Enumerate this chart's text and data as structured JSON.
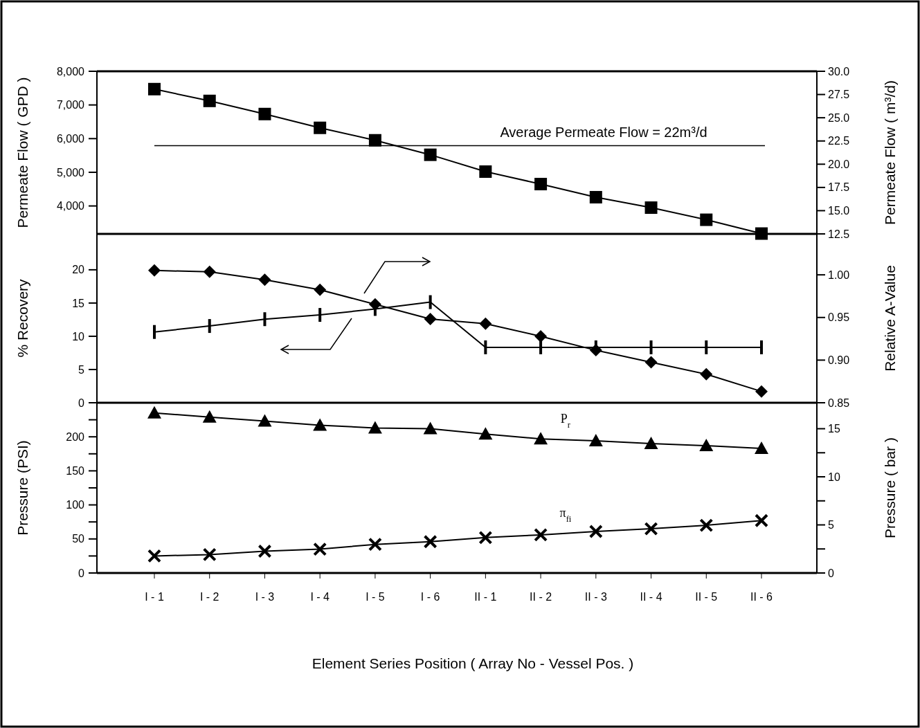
{
  "chart_data": [
    {
      "type": "line",
      "categories": [
        null,
        null,
        null,
        null,
        null,
        null,
        null,
        null,
        null,
        null,
        null,
        null
      ],
      "tick_labels": "y",
      "ylabel": "Permeate Flow ( GPD )",
      "y2label": "Permeate Flow ( m³/d)",
      "ylim": [
        3170,
        8000
      ],
      "yticks": [
        {
          "value": 4000,
          "label": "4,000"
        },
        {
          "value": 5000,
          "label": "5,000"
        },
        {
          "value": 6000,
          "label": "6,000"
        },
        {
          "value": 7000,
          "label": "7,000"
        },
        {
          "value": 8000,
          "label": "8,000"
        }
      ],
      "y2lim": [
        12.5,
        30
      ],
      "y2ticks": [
        {
          "value": 12.5,
          "label": "12.5"
        },
        {
          "value": 15,
          "label": "15.0"
        },
        {
          "value": 17.5,
          "label": "17.5"
        },
        {
          "value": 20,
          "label": "20.0"
        },
        {
          "value": 22.5,
          "label": "22.5"
        },
        {
          "value": 25,
          "label": "25.0"
        },
        {
          "value": 27.5,
          "label": "27.5"
        },
        {
          "value": 30,
          "label": "30.0"
        }
      ],
      "line_style": "solid",
      "series": [
        {
          "color": "#000000",
          "marker": "square",
          "values": [
            7470,
            7120,
            6730,
            6320,
            5950,
            5520,
            5020,
            4650,
            4260,
            3950,
            3590,
            3180
          ]
        }
      ],
      "ref_lines": [
        {
          "axis": "y2",
          "value": 22,
          "label": "Average Permeate Flow = 22m³/d",
          "color": "#000000"
        }
      ]
    },
    {
      "type": "line",
      "categories": [
        null,
        null,
        null,
        null,
        null,
        null,
        null,
        null,
        null,
        null,
        null,
        null
      ],
      "tick_labels": "y",
      "ylabel": "% Recovery",
      "y2label": "Relative A-Value",
      "ylim": [
        0,
        25.4
      ],
      "yticks": [
        0,
        5,
        10,
        15,
        20
      ],
      "y2lim": [
        0.85,
        1.048
      ],
      "y2ticks": [
        0.85,
        {
          "value": 0.9,
          "label": "0.90"
        },
        0.95,
        {
          "value": 1,
          "label": "1.00"
        }
      ],
      "line_style": "solid",
      "series": [
        {
          "color": "#000000",
          "marker": "diamond",
          "values": [
            19.9,
            19.7,
            18.5,
            17.0,
            14.8,
            12.6,
            11.9,
            10.0,
            7.9,
            6.1,
            4.3,
            1.7
          ]
        },
        {
          "color": "#000000",
          "axis": "y2",
          "values": [
            0.933,
            0.94,
            0.948,
            0.953,
            0.96,
            0.968,
            0.915,
            0.915,
            0.915,
            0.915,
            0.915,
            0.915
          ]
        }
      ]
    },
    {
      "type": "line",
      "categories": [
        "I - 1",
        "I - 2",
        "I - 3",
        "I - 4",
        "I - 5",
        "I - 6",
        "II - 1",
        "II - 2",
        "II - 3",
        "II - 4",
        "II - 5",
        "II - 6"
      ],
      "ylabel": "Pressure (PSI)",
      "y2label": "Pressure ( bar )",
      "xlabel": "Element Series Position ( Array No - Vessel Pos. )",
      "ylim": [
        0,
        250
      ],
      "yticks": [
        0,
        {
          "value": 25,
          "label": null
        },
        50,
        {
          "value": 75,
          "label": null
        },
        100,
        {
          "value": 125,
          "label": null
        },
        150,
        {
          "value": 175,
          "label": null
        },
        200,
        {
          "value": 225,
          "label": null
        }
      ],
      "y2lim": [
        0,
        17.7
      ],
      "y2ticks": [
        0,
        {
          "value": 2.5,
          "label": null
        },
        5,
        {
          "value": 7.5,
          "label": null
        },
        10,
        {
          "value": 12.5,
          "label": null
        },
        15
      ],
      "line_style": "solid",
      "series": [
        {
          "name": "P$_{r}$",
          "color": "#000000",
          "marker": "triangle",
          "values": [
            235,
            229,
            223,
            217,
            213,
            212,
            204,
            197,
            194,
            190,
            187,
            183
          ]
        },
        {
          "name": "π$_{fi}$",
          "color": "#000000",
          "marker": "cross",
          "values": [
            25,
            27,
            32,
            35,
            42,
            46,
            52,
            56,
            61,
            65,
            70,
            77
          ]
        }
      ]
    }
  ]
}
